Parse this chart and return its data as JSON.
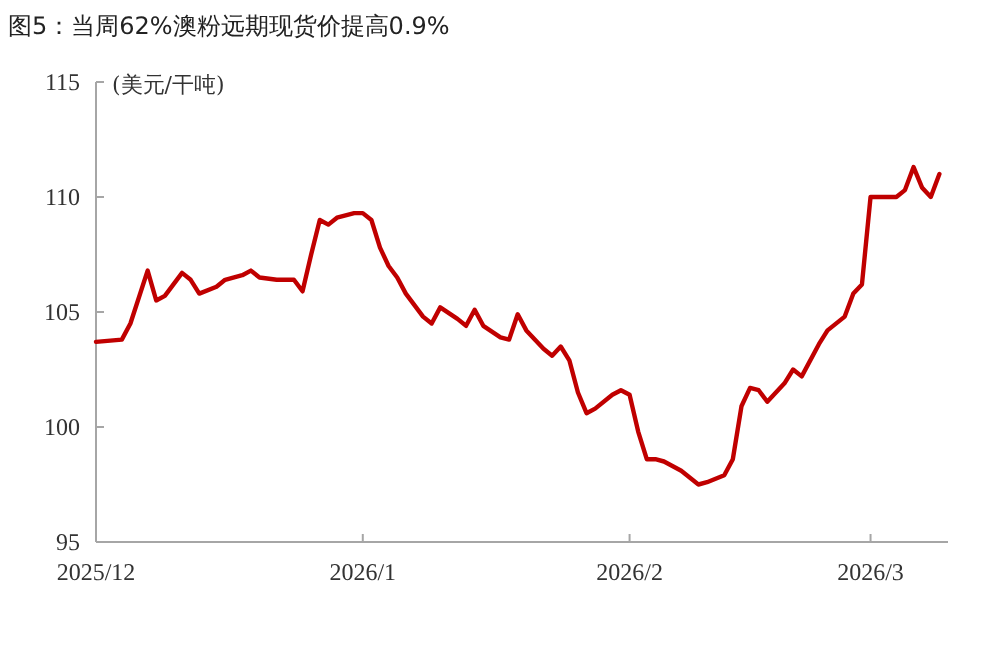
{
  "chart_data": {
    "type": "line",
    "title": "图5：当周62%澳粉远期现货价提高0.9%",
    "ylabel": "(美元/干吨)",
    "x": [
      "2025-12-01",
      "2025-12-04",
      "2025-12-05",
      "2025-12-07",
      "2025-12-08",
      "2025-12-09",
      "2025-12-11",
      "2025-12-12",
      "2025-12-13",
      "2025-12-15",
      "2025-12-16",
      "2025-12-18",
      "2025-12-19",
      "2025-12-20",
      "2025-12-22",
      "2025-12-24",
      "2025-12-25",
      "2025-12-26",
      "2025-12-27",
      "2025-12-28",
      "2025-12-29",
      "2025-12-31",
      "2026-01-01",
      "2026-01-02",
      "2026-01-03",
      "2026-01-04",
      "2026-01-05",
      "2026-01-06",
      "2026-01-08",
      "2026-01-09",
      "2026-01-10",
      "2026-01-12",
      "2026-01-13",
      "2026-01-14",
      "2026-01-15",
      "2026-01-17",
      "2026-01-18",
      "2026-01-19",
      "2026-01-20",
      "2026-01-22",
      "2026-01-23",
      "2026-01-24",
      "2026-01-25",
      "2026-01-26",
      "2026-01-27",
      "2026-01-28",
      "2026-01-30",
      "2026-01-31",
      "2026-02-01",
      "2026-02-02",
      "2026-02-03",
      "2026-02-04",
      "2026-02-05",
      "2026-02-07",
      "2026-02-09",
      "2026-02-10",
      "2026-02-12",
      "2026-02-13",
      "2026-02-14",
      "2026-02-15",
      "2026-02-16",
      "2026-02-17",
      "2026-02-19",
      "2026-02-20",
      "2026-02-21",
      "2026-02-23",
      "2026-02-24",
      "2026-02-26",
      "2026-02-27",
      "2026-02-28",
      "2026-03-01",
      "2026-03-03",
      "2026-03-04",
      "2026-03-05",
      "2026-03-06",
      "2026-03-07",
      "2026-03-08",
      "2026-03-09"
    ],
    "series": [
      {
        "color": "#c00000",
        "values": [
          103.7,
          103.8,
          104.5,
          106.8,
          105.5,
          105.7,
          106.7,
          106.4,
          105.8,
          106.1,
          106.4,
          106.6,
          106.8,
          106.5,
          106.4,
          106.4,
          105.9,
          107.5,
          109.0,
          108.8,
          109.1,
          109.3,
          109.3,
          109.0,
          107.8,
          107.0,
          106.5,
          105.8,
          104.8,
          104.5,
          105.2,
          104.7,
          104.4,
          105.1,
          104.4,
          103.9,
          103.8,
          104.9,
          104.2,
          103.4,
          103.1,
          103.5,
          102.9,
          101.5,
          100.6,
          100.8,
          101.4,
          101.6,
          101.4,
          99.8,
          98.6,
          98.6,
          98.5,
          98.1,
          97.5,
          97.6,
          97.9,
          98.6,
          100.9,
          101.7,
          101.6,
          101.1,
          101.9,
          102.5,
          102.2,
          103.6,
          104.2,
          104.8,
          105.8,
          106.2,
          110.0,
          110.0,
          110.0,
          110.3,
          111.3,
          110.4,
          110.0,
          111.0
        ]
      }
    ],
    "xlim": [
      "2025-12-01",
      "2026-03-10"
    ],
    "xticks": [
      {
        "value": "2025-12-01",
        "label": "2025/12"
      },
      {
        "value": "2026-01-01",
        "label": "2026/1"
      },
      {
        "value": "2026-02-01",
        "label": "2026/2"
      },
      {
        "value": "2026-03-01",
        "label": "2026/3"
      }
    ],
    "ylim": [
      95,
      115
    ],
    "yticks": [
      95,
      100,
      105,
      110,
      115
    ],
    "grid": false,
    "marker": "none",
    "line_style": "solid"
  }
}
